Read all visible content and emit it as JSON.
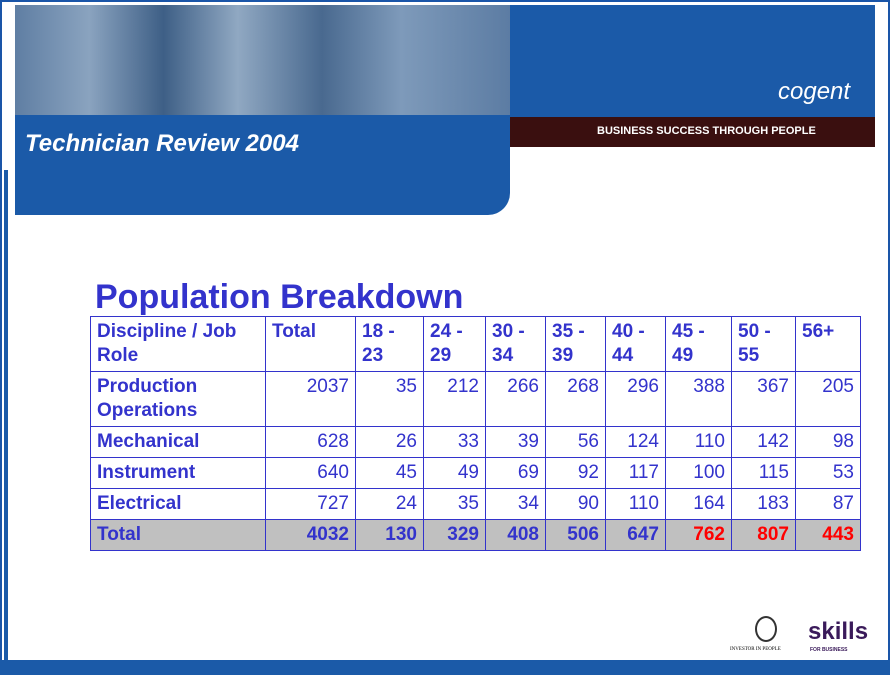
{
  "header": {
    "title": "Technician Review 2004",
    "logo": "cogent",
    "tagline": "BUSINESS SUCCESS THROUGH PEOPLE"
  },
  "heading": "Population Breakdown",
  "table": {
    "columns": [
      "Discipline / Job Role",
      "Total",
      "18 - 23",
      "24 - 29",
      "30 - 34",
      "35 - 39",
      "40 - 44",
      "45 - 49",
      "50 - 55",
      "56+"
    ],
    "rows": [
      [
        "Production Operations",
        2037,
        35,
        212,
        266,
        268,
        296,
        388,
        367,
        205
      ],
      [
        "Mechanical",
        628,
        26,
        33,
        39,
        56,
        124,
        110,
        142,
        98
      ],
      [
        "Instrument",
        640,
        45,
        49,
        69,
        92,
        117,
        100,
        115,
        53
      ],
      [
        "Electrical",
        727,
        24,
        35,
        34,
        90,
        110,
        164,
        183,
        87
      ]
    ],
    "total": [
      "Total",
      4032,
      130,
      329,
      408,
      506,
      647,
      762,
      807,
      443
    ]
  },
  "footer": {
    "investor": "INVESTOR IN PEOPLE",
    "skills": "skills",
    "skills_sub": "FOR BUSINESS"
  }
}
